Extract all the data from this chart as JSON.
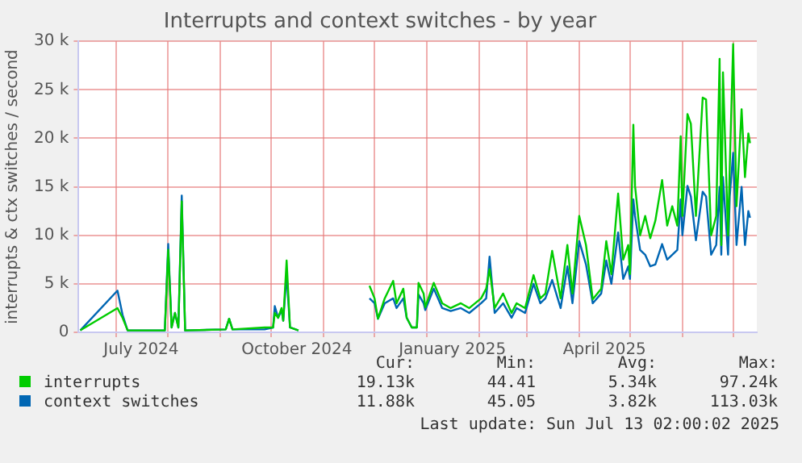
{
  "chart_data": {
    "type": "line",
    "title": "Interrupts and context switches - by year",
    "ylabel": "interrupts & ctx switches / second",
    "x": [
      "2024-06-10",
      "2024-07-02",
      "2024-07-05",
      "2024-07-08",
      "2024-07-30",
      "2024-08-01",
      "2024-08-03",
      "2024-08-05",
      "2024-08-07",
      "2024-08-09",
      "2024-08-11",
      "2024-09-04",
      "2024-09-06",
      "2024-09-08",
      "2024-09-27",
      "2024-10-02",
      "2024-10-03",
      "2024-10-05",
      "2024-10-07",
      "2024-10-08",
      "2024-10-10",
      "2024-10-12",
      "2024-10-17",
      "2024-11-01",
      "2024-11-28",
      "2024-12-01",
      "2024-12-03",
      "2024-12-07",
      "2024-12-12",
      "2024-12-14",
      "2024-12-18",
      "2024-12-20",
      "2024-12-23",
      "2024-12-26",
      "2024-12-27",
      "2024-12-30",
      "2024-12-31",
      "2025-01-05",
      "2025-01-10",
      "2025-01-15",
      "2025-01-21",
      "2025-01-26",
      "2025-02-02",
      "2025-02-05",
      "2025-02-07",
      "2025-02-10",
      "2025-02-15",
      "2025-02-20",
      "2025-02-23",
      "2025-02-28",
      "2025-03-05",
      "2025-03-09",
      "2025-03-12",
      "2025-03-16",
      "2025-03-21",
      "2025-03-25",
      "2025-03-28",
      "2025-04-01",
      "2025-04-05",
      "2025-04-09",
      "2025-04-14",
      "2025-04-17",
      "2025-04-20",
      "2025-04-24",
      "2025-04-27",
      "2025-04-30",
      "2025-05-01",
      "2025-05-03",
      "2025-05-04",
      "2025-05-07",
      "2025-05-10",
      "2025-05-13",
      "2025-05-16",
      "2025-05-20",
      "2025-05-23",
      "2025-05-26",
      "2025-05-29",
      "2025-05-31",
      "2025-06-01",
      "2025-06-04",
      "2025-06-06",
      "2025-06-09",
      "2025-06-13",
      "2025-06-15",
      "2025-06-18",
      "2025-06-21",
      "2025-06-23",
      "2025-06-24",
      "2025-06-25",
      "2025-06-28",
      "2025-06-29",
      "2025-07-01",
      "2025-07-03",
      "2025-07-06",
      "2025-07-08",
      "2025-07-10",
      "2025-07-11"
    ],
    "series": [
      {
        "name": "interrupts",
        "color": "#00cc00",
        "values": [
          200,
          2500,
          1500,
          200,
          200,
          8500,
          500,
          2000,
          500,
          13500,
          200,
          300,
          1400,
          300,
          500,
          500,
          2000,
          1500,
          2500,
          1200,
          7400,
          500,
          200,
          null,
          4800,
          3500,
          1400,
          3500,
          5300,
          3000,
          4500,
          1500,
          500,
          500,
          5100,
          4000,
          2600,
          5100,
          3000,
          2500,
          3000,
          2500,
          3500,
          4500,
          6500,
          2500,
          4000,
          2000,
          3000,
          2500,
          5900,
          3500,
          4000,
          8400,
          3500,
          9000,
          4000,
          12000,
          9000,
          3400,
          4500,
          9400,
          6000,
          14300,
          7500,
          9000,
          6000,
          21400,
          15100,
          10000,
          12000,
          9700,
          11500,
          15700,
          11000,
          13000,
          11000,
          20200,
          12000,
          22500,
          21500,
          12000,
          24200,
          24000,
          10000,
          12000,
          28200,
          9000,
          26800,
          10000,
          17000,
          29700,
          13000,
          23000,
          16000,
          20500,
          19500
        ]
      },
      {
        "name": "context switches",
        "color": "#0066b3",
        "values": [
          200,
          4300,
          1800,
          200,
          200,
          9100,
          500,
          2000,
          500,
          14100,
          200,
          300,
          1400,
          300,
          300,
          500,
          2700,
          1500,
          2300,
          1200,
          6000,
          500,
          200,
          null,
          3500,
          3000,
          1400,
          3000,
          3500,
          2500,
          3500,
          1500,
          500,
          500,
          3900,
          3000,
          2300,
          4500,
          2500,
          2200,
          2500,
          2000,
          3000,
          3500,
          7800,
          2000,
          3000,
          1500,
          2500,
          2000,
          5000,
          3000,
          3500,
          5400,
          2500,
          6800,
          3000,
          9400,
          7000,
          3000,
          4000,
          7400,
          5000,
          10300,
          5500,
          6800,
          5500,
          13700,
          12000,
          8500,
          8000,
          6800,
          7000,
          9100,
          7500,
          8000,
          8500,
          13700,
          10000,
          15100,
          14000,
          9500,
          14500,
          14000,
          8000,
          9000,
          15000,
          8000,
          16000,
          8000,
          14000,
          18500,
          9000,
          15000,
          9000,
          12500,
          11800
        ]
      }
    ],
    "xlim": [
      "2024-06-09",
      "2025-07-15"
    ],
    "xticks": [
      {
        "value": "2024-07-01",
        "label": null
      },
      {
        "value": "2024-07-16",
        "label": "July 2024"
      },
      {
        "value": "2024-08-01",
        "label": null
      },
      {
        "value": "2024-09-01",
        "label": null
      },
      {
        "value": "2024-10-01",
        "label": null
      },
      {
        "value": "2024-10-16",
        "label": "October 2024"
      },
      {
        "value": "2024-11-01",
        "label": null
      },
      {
        "value": "2024-12-01",
        "label": null
      },
      {
        "value": "2025-01-01",
        "label": null
      },
      {
        "value": "2025-01-16",
        "label": "January 2025"
      },
      {
        "value": "2025-02-01",
        "label": null
      },
      {
        "value": "2025-03-01",
        "label": null
      },
      {
        "value": "2025-04-01",
        "label": null
      },
      {
        "value": "2025-04-16",
        "label": "April 2025"
      },
      {
        "value": "2025-05-01",
        "label": null
      },
      {
        "value": "2025-06-01",
        "label": null
      },
      {
        "value": "2025-07-01",
        "label": null
      }
    ],
    "ylim": [
      0,
      30000
    ],
    "yticks": [
      0,
      {
        "value": 5000,
        "label": "5 k"
      },
      {
        "value": 10000,
        "label": "10 k"
      },
      {
        "value": 15000,
        "label": "15 k"
      },
      {
        "value": 20000,
        "label": "20 k"
      },
      {
        "value": 25000,
        "label": "25 k"
      },
      {
        "value": 30000,
        "label": "30 k"
      }
    ],
    "grid": true,
    "legend": "bottom",
    "marker": "none",
    "line_style": "solid",
    "annotations": [
      "Cur:",
      "Min:",
      "Avg:",
      "Max:",
      "19.13k",
      "44.41",
      "5.34k",
      "97.24k",
      "11.88k",
      "45.05",
      "3.82k",
      "113.03k",
      "Last update: Sun Jul 13 02:00:02 2025"
    ]
  }
}
